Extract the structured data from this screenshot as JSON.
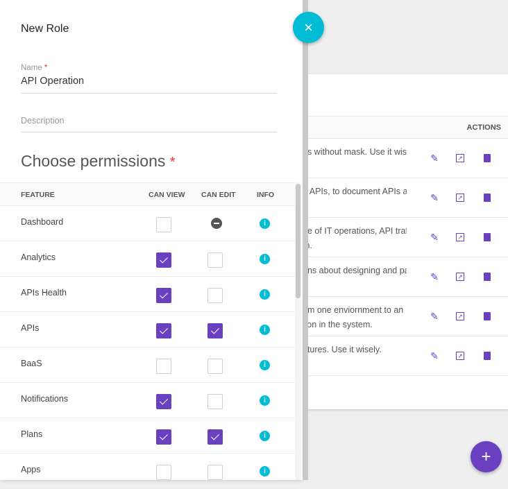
{
  "drawer": {
    "title": "New Role",
    "name_label": "Name",
    "required_mark": "*",
    "name_value": "API Operation",
    "description_placeholder": "Description",
    "permissions_heading": "Choose permissions",
    "close_icon": "×"
  },
  "permissions": {
    "headers": [
      "FEATURE",
      "CAN VIEW",
      "CAN EDIT",
      "INFO"
    ],
    "rows": [
      {
        "feature": "Dashboard",
        "can_view": false,
        "can_edit": "disabled"
      },
      {
        "feature": "Analytics",
        "can_view": true,
        "can_edit": false
      },
      {
        "feature": "APIs Health",
        "can_view": true,
        "can_edit": false
      },
      {
        "feature": "APIs",
        "can_view": true,
        "can_edit": true
      },
      {
        "feature": "BaaS",
        "can_view": false,
        "can_edit": false
      },
      {
        "feature": "Notifications",
        "can_view": true,
        "can_edit": false
      },
      {
        "feature": "Plans",
        "can_view": true,
        "can_edit": true
      },
      {
        "feature": "Apps",
        "can_view": false,
        "can_edit": false
      }
    ]
  },
  "background_table": {
    "actions_header": "ACTIONS",
    "rows": [
      [
        "ns without mask. Use it wis",
        ""
      ],
      [
        "n APIs, to document APIs a",
        ""
      ],
      [
        "ge of IT operations, API traf",
        "th."
      ],
      [
        "ons about designing and pa",
        ""
      ],
      [
        "om one enviornment to an",
        "tion in the system."
      ],
      [
        "atures. Use it wisely.",
        ""
      ]
    ]
  },
  "add_button": "+",
  "colors": {
    "accent": "#6a3fc0",
    "cyan": "#00bcd4"
  }
}
